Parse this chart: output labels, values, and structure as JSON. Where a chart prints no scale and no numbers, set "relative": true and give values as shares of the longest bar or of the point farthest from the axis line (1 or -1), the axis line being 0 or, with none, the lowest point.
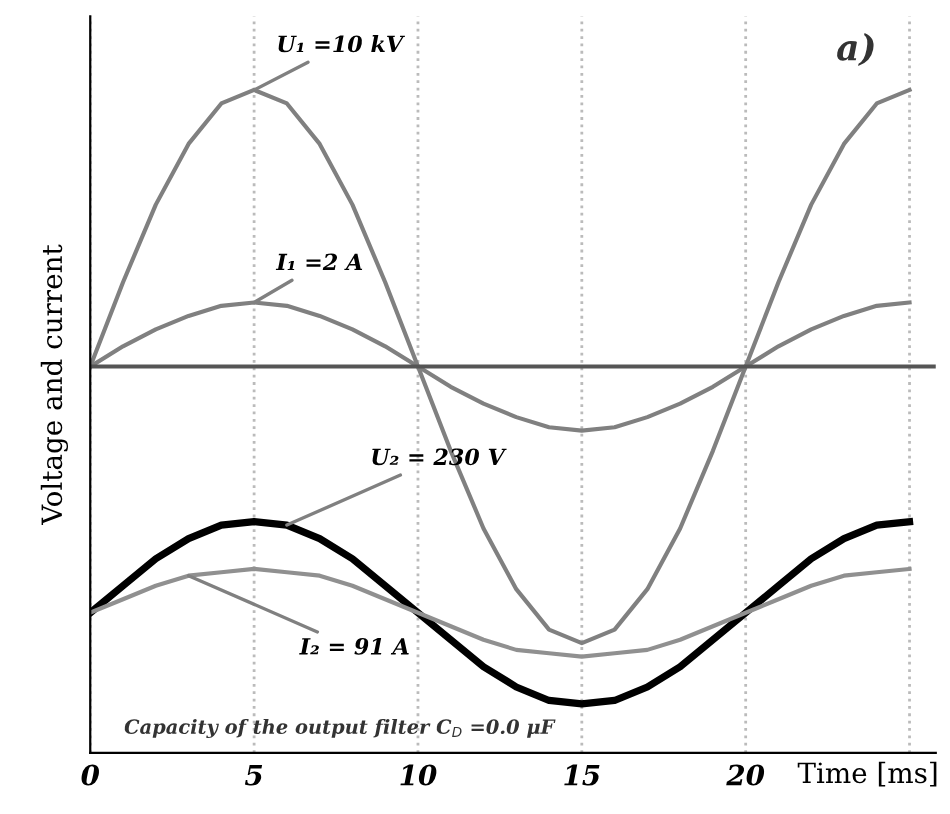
{
  "chart_data": {
    "type": "line",
    "relative": true,
    "xlabel": "Time [ms]",
    "ylabel": "Voltage and current",
    "x": [
      0,
      1,
      2,
      3,
      4,
      5,
      6,
      7,
      8,
      9,
      10,
      11,
      12,
      13,
      14,
      15,
      16,
      17,
      18,
      19,
      20,
      21,
      22,
      23,
      24,
      25
    ],
    "xlim": [
      0,
      25.8
    ],
    "xticks": [
      0,
      5,
      10,
      15,
      20,
      {
        "value": 25,
        "label": null
      }
    ],
    "grid": "x",
    "marker": "none",
    "line_style": "solid",
    "series": [
      {
        "name": "U₁ =10 kV",
        "color": "#808080",
        "values": [
          0,
          0.25,
          0.48,
          0.66,
          0.78,
          0.82,
          0.78,
          0.66,
          0.48,
          0.25,
          0,
          -0.25,
          -0.48,
          -0.66,
          -0.78,
          -0.82,
          -0.78,
          -0.66,
          -0.48,
          -0.25,
          0,
          0.25,
          0.48,
          0.66,
          0.78,
          0.82
        ]
      },
      {
        "name": "I₁ =2 A",
        "color": "#808080",
        "values": [
          0,
          0.06,
          0.11,
          0.15,
          0.18,
          0.19,
          0.18,
          0.15,
          0.11,
          0.06,
          0,
          -0.06,
          -0.11,
          -0.15,
          -0.18,
          -0.19,
          -0.18,
          -0.15,
          -0.11,
          -0.06,
          0,
          0.06,
          0.11,
          0.15,
          0.18,
          0.19
        ]
      },
      {
        "name": "U₂ = 230 V",
        "color": "#000000",
        "values": [
          -0.73,
          -0.65,
          -0.57,
          -0.51,
          -0.47,
          -0.46,
          -0.47,
          -0.51,
          -0.57,
          -0.65,
          -0.73,
          -0.81,
          -0.89,
          -0.95,
          -0.99,
          -1,
          -0.99,
          -0.95,
          -0.89,
          -0.81,
          -0.73,
          -0.65,
          -0.57,
          -0.51,
          -0.47,
          -0.46
        ]
      },
      {
        "name": "I₂ = 91 A",
        "color": "#909090",
        "values": [
          -0.73,
          -0.69,
          -0.65,
          -0.62,
          -0.61,
          -0.6,
          -0.61,
          -0.62,
          -0.65,
          -0.69,
          -0.73,
          -0.77,
          -0.81,
          -0.84,
          -0.85,
          -0.86,
          -0.85,
          -0.84,
          -0.81,
          -0.77,
          -0.73,
          -0.69,
          -0.65,
          -0.62,
          -0.61,
          -0.6
        ]
      }
    ],
    "annotations": [
      "a)",
      "Capacity of the output filter C$_{D}$ =0.0 μF"
    ]
  }
}
